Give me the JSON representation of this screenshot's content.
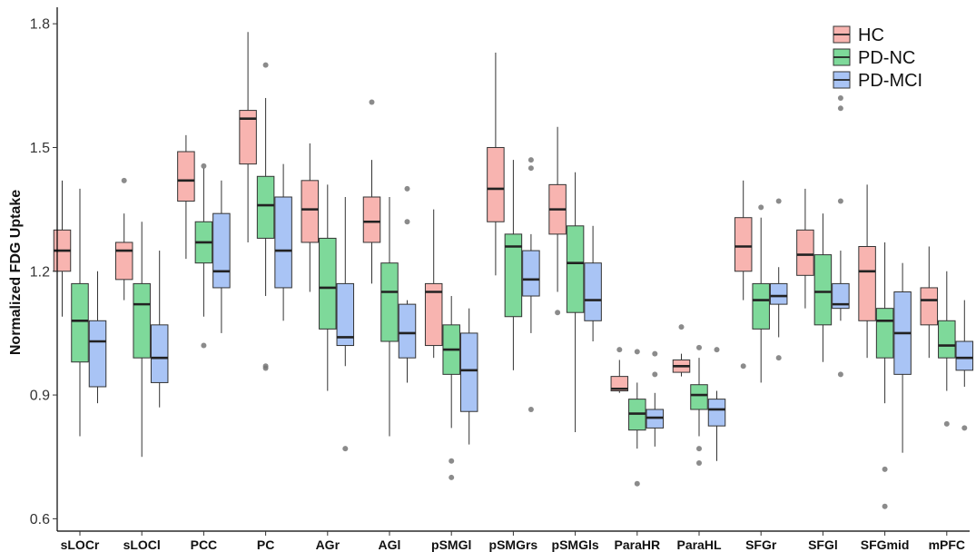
{
  "chart_data": {
    "type": "boxplot",
    "ylabel": "Normalized FDG Uptake",
    "ylim": [
      0.57,
      1.84
    ],
    "yticks": [
      0.6,
      0.9,
      1.2,
      1.5,
      1.8
    ],
    "ytick_labels": [
      "0.6",
      "0.9",
      "1.2",
      "1.5",
      "1.8"
    ],
    "legend_position": "top-right",
    "categories": [
      "sLOCr",
      "sLOCl",
      "PCC",
      "PC",
      "AGr",
      "AGl",
      "pSMGl",
      "pSMGrs",
      "pSMGls",
      "ParaHR",
      "ParaHL",
      "SFGr",
      "SFGl",
      "SFGmid",
      "mPFC"
    ],
    "series": [
      {
        "name": "HC",
        "color": "#F8B4B0",
        "boxes": [
          {
            "whislo": 1.09,
            "q1": 1.2,
            "med": 1.25,
            "q3": 1.3,
            "whishi": 1.42,
            "fliers": []
          },
          {
            "whislo": 1.13,
            "q1": 1.18,
            "med": 1.25,
            "q3": 1.27,
            "whishi": 1.34,
            "fliers": [
              1.42
            ]
          },
          {
            "whislo": 1.23,
            "q1": 1.37,
            "med": 1.42,
            "q3": 1.49,
            "whishi": 1.53,
            "fliers": []
          },
          {
            "whislo": 1.27,
            "q1": 1.46,
            "med": 1.57,
            "q3": 1.59,
            "whishi": 1.78,
            "fliers": []
          },
          {
            "whislo": 1.15,
            "q1": 1.27,
            "med": 1.35,
            "q3": 1.42,
            "whishi": 1.51,
            "fliers": []
          },
          {
            "whislo": 1.17,
            "q1": 1.27,
            "med": 1.32,
            "q3": 1.38,
            "whishi": 1.47,
            "fliers": [
              1.61
            ]
          },
          {
            "whislo": 0.99,
            "q1": 1.02,
            "med": 1.15,
            "q3": 1.17,
            "whishi": 1.35,
            "fliers": []
          },
          {
            "whislo": 1.19,
            "q1": 1.32,
            "med": 1.4,
            "q3": 1.5,
            "whishi": 1.73,
            "fliers": []
          },
          {
            "whislo": 1.15,
            "q1": 1.29,
            "med": 1.35,
            "q3": 1.41,
            "whishi": 1.55,
            "fliers": [
              1.1
            ]
          },
          {
            "whislo": 0.905,
            "q1": 0.91,
            "med": 0.915,
            "q3": 0.945,
            "whishi": 0.985,
            "fliers": [
              1.01
            ]
          },
          {
            "whislo": 0.945,
            "q1": 0.955,
            "med": 0.97,
            "q3": 0.985,
            "whishi": 1.0,
            "fliers": [
              1.065
            ]
          },
          {
            "whislo": 1.13,
            "q1": 1.2,
            "med": 1.26,
            "q3": 1.33,
            "whishi": 1.42,
            "fliers": [
              0.97
            ]
          },
          {
            "whislo": 1.11,
            "q1": 1.19,
            "med": 1.24,
            "q3": 1.3,
            "whishi": 1.4,
            "fliers": []
          },
          {
            "whislo": 0.99,
            "q1": 1.08,
            "med": 1.2,
            "q3": 1.26,
            "whishi": 1.41,
            "fliers": []
          },
          {
            "whislo": 0.99,
            "q1": 1.07,
            "med": 1.13,
            "q3": 1.16,
            "whishi": 1.26,
            "fliers": []
          }
        ]
      },
      {
        "name": "PD-NC",
        "color": "#7ED99A",
        "boxes": [
          {
            "whislo": 0.8,
            "q1": 0.98,
            "med": 1.08,
            "q3": 1.17,
            "whishi": 1.4,
            "fliers": []
          },
          {
            "whislo": 0.75,
            "q1": 0.99,
            "med": 1.12,
            "q3": 1.17,
            "whishi": 1.32,
            "fliers": []
          },
          {
            "whislo": 1.09,
            "q1": 1.22,
            "med": 1.27,
            "q3": 1.32,
            "whishi": 1.45,
            "fliers": [
              1.455,
              1.02
            ]
          },
          {
            "whislo": 1.14,
            "q1": 1.28,
            "med": 1.36,
            "q3": 1.43,
            "whishi": 1.62,
            "fliers": [
              1.7,
              0.97,
              0.965
            ]
          },
          {
            "whislo": 0.91,
            "q1": 1.06,
            "med": 1.16,
            "q3": 1.28,
            "whishi": 1.41,
            "fliers": []
          },
          {
            "whislo": 0.8,
            "q1": 1.03,
            "med": 1.15,
            "q3": 1.22,
            "whishi": 1.38,
            "fliers": []
          },
          {
            "whislo": 0.82,
            "q1": 0.95,
            "med": 1.01,
            "q3": 1.07,
            "whishi": 1.14,
            "fliers": [
              0.74,
              0.7
            ]
          },
          {
            "whislo": 0.96,
            "q1": 1.09,
            "med": 1.26,
            "q3": 1.29,
            "whishi": 1.47,
            "fliers": []
          },
          {
            "whislo": 0.81,
            "q1": 1.1,
            "med": 1.22,
            "q3": 1.31,
            "whishi": 1.44,
            "fliers": []
          },
          {
            "whislo": 0.77,
            "q1": 0.815,
            "med": 0.855,
            "q3": 0.89,
            "whishi": 0.93,
            "fliers": [
              1.005,
              0.685
            ]
          },
          {
            "whislo": 0.8,
            "q1": 0.865,
            "med": 0.9,
            "q3": 0.925,
            "whishi": 0.99,
            "fliers": [
              1.015,
              0.77,
              0.735
            ]
          },
          {
            "whislo": 0.93,
            "q1": 1.06,
            "med": 1.13,
            "q3": 1.17,
            "whishi": 1.33,
            "fliers": [
              1.355
            ]
          },
          {
            "whislo": 0.98,
            "q1": 1.07,
            "med": 1.15,
            "q3": 1.24,
            "whishi": 1.34,
            "fliers": []
          },
          {
            "whislo": 0.88,
            "q1": 0.99,
            "med": 1.08,
            "q3": 1.11,
            "whishi": 1.27,
            "fliers": [
              0.72,
              0.63
            ]
          },
          {
            "whislo": 0.91,
            "q1": 0.99,
            "med": 1.02,
            "q3": 1.08,
            "whishi": 1.2,
            "fliers": [
              0.83
            ]
          }
        ]
      },
      {
        "name": "PD-MCI",
        "color": "#A9C4F5",
        "boxes": [
          {
            "whislo": 0.88,
            "q1": 0.92,
            "med": 1.03,
            "q3": 1.08,
            "whishi": 1.2,
            "fliers": []
          },
          {
            "whislo": 0.87,
            "q1": 0.93,
            "med": 0.99,
            "q3": 1.07,
            "whishi": 1.25,
            "fliers": []
          },
          {
            "whislo": 1.05,
            "q1": 1.16,
            "med": 1.2,
            "q3": 1.34,
            "whishi": 1.42,
            "fliers": []
          },
          {
            "whislo": 1.08,
            "q1": 1.16,
            "med": 1.25,
            "q3": 1.38,
            "whishi": 1.46,
            "fliers": []
          },
          {
            "whislo": 0.97,
            "q1": 1.02,
            "med": 1.04,
            "q3": 1.17,
            "whishi": 1.38,
            "fliers": [
              0.77
            ]
          },
          {
            "whislo": 0.93,
            "q1": 0.99,
            "med": 1.05,
            "q3": 1.12,
            "whishi": 1.13,
            "fliers": [
              1.4,
              1.32
            ]
          },
          {
            "whislo": 0.78,
            "q1": 0.86,
            "med": 0.96,
            "q3": 1.05,
            "whishi": 1.11,
            "fliers": []
          },
          {
            "whislo": 1.05,
            "q1": 1.14,
            "med": 1.18,
            "q3": 1.25,
            "whishi": 1.29,
            "fliers": [
              1.47,
              1.45,
              0.865
            ]
          },
          {
            "whislo": 1.03,
            "q1": 1.08,
            "med": 1.13,
            "q3": 1.22,
            "whishi": 1.31,
            "fliers": []
          },
          {
            "whislo": 0.775,
            "q1": 0.82,
            "med": 0.845,
            "q3": 0.865,
            "whishi": 0.905,
            "fliers": [
              1.0,
              0.95
            ]
          },
          {
            "whislo": 0.74,
            "q1": 0.825,
            "med": 0.865,
            "q3": 0.89,
            "whishi": 0.91,
            "fliers": [
              1.01
            ]
          },
          {
            "whislo": 1.04,
            "q1": 1.12,
            "med": 1.14,
            "q3": 1.17,
            "whishi": 1.21,
            "fliers": [
              1.37,
              0.99
            ]
          },
          {
            "whislo": 1.08,
            "q1": 1.11,
            "med": 1.12,
            "q3": 1.17,
            "whishi": 1.25,
            "fliers": [
              1.62,
              1.595,
              1.37,
              0.95
            ]
          },
          {
            "whislo": 0.76,
            "q1": 0.95,
            "med": 1.05,
            "q3": 1.15,
            "whishi": 1.22,
            "fliers": []
          },
          {
            "whislo": 0.92,
            "q1": 0.96,
            "med": 0.99,
            "q3": 1.03,
            "whishi": 1.13,
            "fliers": [
              0.82
            ]
          }
        ]
      }
    ]
  }
}
